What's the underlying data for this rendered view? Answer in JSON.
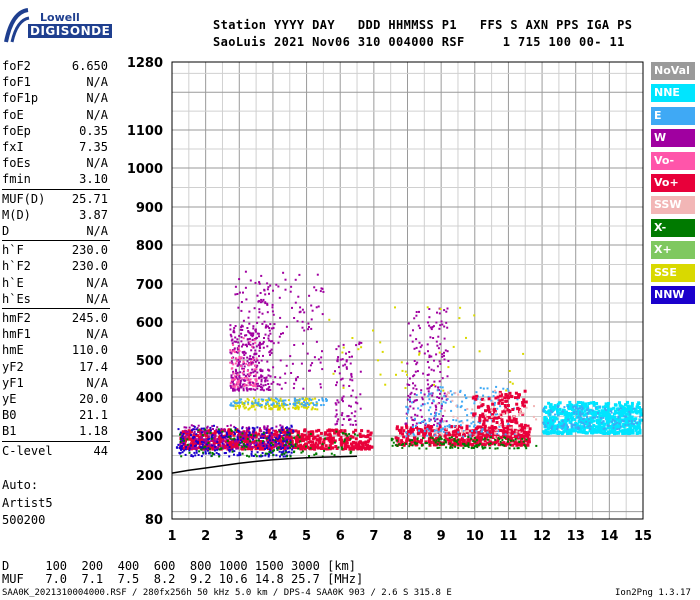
{
  "header": {
    "logo_line1": "Lowell",
    "logo_line2": "DIGISONDE",
    "row1": "Station YYYY DAY   DDD HHMMSS P1   FFS S AXN PPS IGA PS",
    "row2": "SaoLuis 2021 Nov06 310 004000 RSF     1 715 100 00- 11"
  },
  "params": [
    {
      "k": "foF2",
      "v": "6.650"
    },
    {
      "k": "foF1",
      "v": "N/A"
    },
    {
      "k": "foF1p",
      "v": "N/A"
    },
    {
      "k": "foE",
      "v": "N/A"
    },
    {
      "k": "foEp",
      "v": "0.35"
    },
    {
      "k": "fxI",
      "v": "7.35"
    },
    {
      "k": "foEs",
      "v": "N/A"
    },
    {
      "k": "fmin",
      "v": "3.10"
    },
    {
      "k": "MUF(D)",
      "v": "25.71"
    },
    {
      "k": "M(D)",
      "v": "3.87"
    },
    {
      "k": "D",
      "v": "N/A"
    },
    {
      "k": "h`F",
      "v": "230.0"
    },
    {
      "k": "h`F2",
      "v": "230.0"
    },
    {
      "k": "h`E",
      "v": "N/A"
    },
    {
      "k": "h`Es",
      "v": "N/A"
    },
    {
      "k": "hmF2",
      "v": "245.0"
    },
    {
      "k": "hmF1",
      "v": "N/A"
    },
    {
      "k": "hmE",
      "v": "110.0"
    },
    {
      "k": "yF2",
      "v": "17.4"
    },
    {
      "k": "yF1",
      "v": "N/A"
    },
    {
      "k": "yE",
      "v": "20.0"
    },
    {
      "k": "B0",
      "v": "21.1"
    },
    {
      "k": "B1",
      "v": "1.18"
    },
    {
      "k": "C-level",
      "v": "44"
    }
  ],
  "extra": {
    "auto": "Auto:",
    "artist": "Artist5",
    "code": "500200"
  },
  "bottom": {
    "d_row": "D     100  200  400  600  800 1000 1500 3000 [km]",
    "muf_row": "MUF   7.0  7.1  7.5  8.2  9.2 10.6 14.8 25.7 [MHz]"
  },
  "footer": {
    "left": "SAA0K_2021310004000.RSF / 280fx256h 50 kHz 5.0 km / DPS-4 SAA0K 903 / 2.6 S 315.8 E",
    "right": "Ion2Png 1.3.17"
  },
  "legend": [
    {
      "label": "NoVal",
      "bg": "#9a9a9a",
      "fg": "#ffffff"
    },
    {
      "label": "NNE",
      "bg": "#00e5ff",
      "fg": "#ffffff"
    },
    {
      "label": "E",
      "bg": "#3fa9f5",
      "fg": "#ffffff"
    },
    {
      "label": "W",
      "bg": "#a000a0",
      "fg": "#ffffff"
    },
    {
      "label": "Vo-",
      "bg": "#ff55aa",
      "fg": "#ffffff"
    },
    {
      "label": "Vo+",
      "bg": "#e8003a",
      "fg": "#ffffff"
    },
    {
      "label": "SSW",
      "bg": "#f2b6b6",
      "fg": "#ffffff"
    },
    {
      "label": "X-",
      "bg": "#007a00",
      "fg": "#ffffff"
    },
    {
      "label": "X+",
      "bg": "#7fc860",
      "fg": "#ffffff"
    },
    {
      "label": "SSE",
      "bg": "#d9d900",
      "fg": "#ffffff"
    },
    {
      "label": "NNW",
      "bg": "#1a00cc",
      "fg": "#ffffff"
    }
  ],
  "chart_data": {
    "type": "scatter",
    "x_ticks": [
      1,
      2,
      3,
      4,
      5,
      6,
      7,
      8,
      9,
      10,
      11,
      12,
      13,
      14,
      15
    ],
    "y_tick_labels": [
      80,
      200,
      300,
      400,
      500,
      600,
      700,
      800,
      900,
      1000,
      1100,
      1280
    ],
    "xlim": [
      1,
      15
    ],
    "ylim": [
      80,
      1280
    ],
    "grid": true,
    "trace_regions": [
      {
        "name": "Vo+",
        "xmin": 1.2,
        "xmax": 6.9,
        "ymin": 270,
        "ymax": 320,
        "count": 650
      },
      {
        "name": "W",
        "xmin": 1.2,
        "xmax": 4.5,
        "ymin": 270,
        "ymax": 330,
        "count": 250
      },
      {
        "name": "NNW",
        "xmin": 1.1,
        "xmax": 4.6,
        "ymin": 250,
        "ymax": 330,
        "count": 260
      },
      {
        "name": "X-",
        "xmin": 1.2,
        "xmax": 6.5,
        "ymin": 250,
        "ymax": 320,
        "count": 140
      },
      {
        "name": "W",
        "xmin": 2.7,
        "xmax": 3.5,
        "ymin": 420,
        "ymax": 600,
        "count": 200
      },
      {
        "name": "W",
        "xmin": 3.5,
        "xmax": 4.0,
        "ymin": 420,
        "ymax": 700,
        "count": 90
      },
      {
        "name": "W",
        "xmin": 5.8,
        "xmax": 6.6,
        "ymin": 330,
        "ymax": 560,
        "count": 80
      },
      {
        "name": "Vo-",
        "xmin": 2.7,
        "xmax": 3.5,
        "ymin": 430,
        "ymax": 560,
        "count": 90
      },
      {
        "name": "SSE",
        "xmin": 2.8,
        "xmax": 5.3,
        "ymin": 370,
        "ymax": 400,
        "count": 150
      },
      {
        "name": "E",
        "xmin": 2.7,
        "xmax": 5.6,
        "ymin": 380,
        "ymax": 400,
        "count": 90
      },
      {
        "name": "W",
        "xmin": 2.8,
        "xmax": 5.5,
        "ymin": 420,
        "ymax": 740,
        "count": 160
      },
      {
        "name": "Vo+",
        "xmin": 7.6,
        "xmax": 11.6,
        "ymin": 280,
        "ymax": 330,
        "count": 420
      },
      {
        "name": "W",
        "xmin": 7.9,
        "xmax": 9.2,
        "ymin": 330,
        "ymax": 640,
        "count": 180
      },
      {
        "name": "E",
        "xmin": 7.9,
        "xmax": 11.3,
        "ymin": 300,
        "ymax": 430,
        "count": 200
      },
      {
        "name": "Vo+",
        "xmin": 9.9,
        "xmax": 11.5,
        "ymin": 300,
        "ymax": 420,
        "count": 180
      },
      {
        "name": "NNE",
        "xmin": 12.0,
        "xmax": 14.9,
        "ymin": 310,
        "ymax": 390,
        "count": 650
      },
      {
        "name": "E",
        "xmin": 12.0,
        "xmax": 14.9,
        "ymin": 320,
        "ymax": 380,
        "count": 140
      },
      {
        "name": "SSW",
        "xmin": 8.8,
        "xmax": 11.8,
        "ymin": 290,
        "ymax": 420,
        "count": 90
      },
      {
        "name": "X-",
        "xmin": 7.5,
        "xmax": 11.8,
        "ymin": 270,
        "ymax": 300,
        "count": 140
      },
      {
        "name": "SSE",
        "xmin": 5.5,
        "xmax": 11.5,
        "ymin": 420,
        "ymax": 660,
        "count": 40
      }
    ],
    "profile_line": [
      [
        1.0,
        205
      ],
      [
        1.5,
        212
      ],
      [
        2.0,
        218
      ],
      [
        2.5,
        224
      ],
      [
        3.0,
        230
      ],
      [
        3.5,
        235
      ],
      [
        4.0,
        239
      ],
      [
        4.5,
        242
      ],
      [
        5.0,
        244
      ],
      [
        5.5,
        246
      ],
      [
        6.0,
        247
      ],
      [
        6.5,
        248
      ]
    ]
  }
}
